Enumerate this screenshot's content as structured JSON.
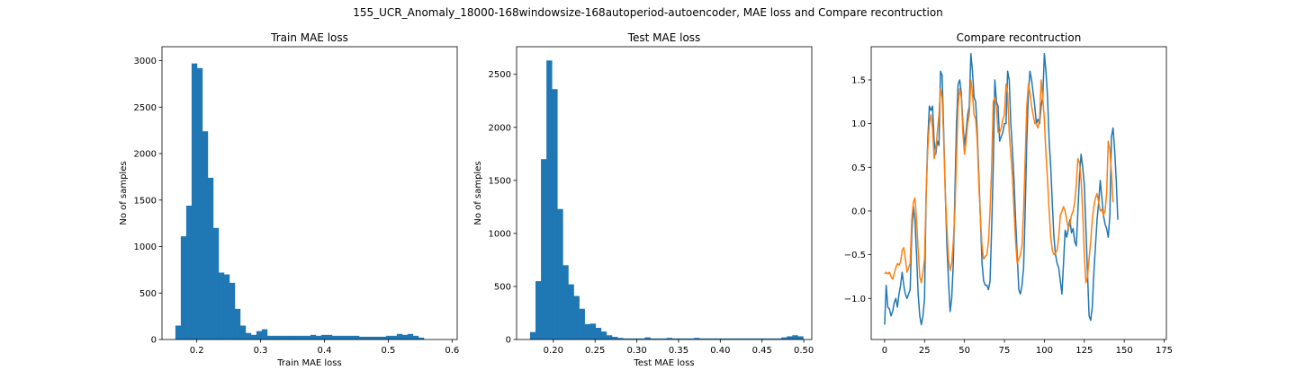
{
  "suptitle": "155_UCR_Anomaly_18000-168windowsize-168autoperiod-autoencoder, MAE loss and Compare recontruction",
  "chart_data": [
    {
      "type": "bar",
      "title": "Train MAE loss",
      "xlabel": "Train MAE loss",
      "ylabel": "No of samples",
      "color": "#1f77b4",
      "xlim": [
        0.1455,
        0.608
      ],
      "ylim": [
        0,
        3150
      ],
      "xticks": [
        0.2,
        0.3,
        0.4,
        0.5,
        0.6
      ],
      "xtick_labels": [
        "0.2",
        "0.3",
        "0.4",
        "0.5",
        "0.6"
      ],
      "yticks": [
        0,
        500,
        1000,
        1500,
        2000,
        2500,
        3000
      ],
      "ytick_labels": [
        "0",
        "500",
        "1000",
        "1500",
        "2000",
        "2500",
        "3000"
      ],
      "bin_start": 0.1665,
      "bin_width": 0.00846,
      "values": [
        150,
        1110,
        1440,
        2970,
        2920,
        2240,
        1740,
        1200,
        720,
        700,
        610,
        330,
        150,
        70,
        50,
        90,
        110,
        40,
        40,
        40,
        40,
        40,
        40,
        40,
        40,
        50,
        40,
        50,
        50,
        40,
        40,
        40,
        40,
        40,
        30,
        30,
        30,
        30,
        30,
        40,
        40,
        60,
        50,
        60,
        40,
        20
      ]
    },
    {
      "type": "bar",
      "title": "Test MAE loss",
      "xlabel": "Test MAE loss",
      "ylabel": "No of samples",
      "color": "#1f77b4",
      "xlim": [
        0.156,
        0.5096
      ],
      "ylim": [
        0,
        2760
      ],
      "xticks": [
        0.2,
        0.25,
        0.3,
        0.35,
        0.4,
        0.45,
        0.5
      ],
      "xtick_labels": [
        "0.20",
        "0.25",
        "0.30",
        "0.35",
        "0.40",
        "0.45",
        "0.50"
      ],
      "yticks": [
        0,
        500,
        1000,
        1500,
        2000,
        2500
      ],
      "ytick_labels": [
        "0",
        "500",
        "1000",
        "1500",
        "2000",
        "2500"
      ],
      "bin_start": 0.1721,
      "bin_width": 0.006544,
      "values": [
        70,
        550,
        1700,
        2630,
        2360,
        1230,
        700,
        520,
        410,
        290,
        145,
        150,
        110,
        75,
        40,
        25,
        15,
        10,
        10,
        10,
        10,
        20,
        10,
        10,
        10,
        15,
        10,
        10,
        10,
        10,
        15,
        10,
        10,
        10,
        10,
        10,
        10,
        10,
        10,
        10,
        10,
        10,
        10,
        10,
        10,
        10,
        20,
        30,
        40,
        30
      ]
    },
    {
      "type": "line",
      "title": "Compare recontruction",
      "xlim": [
        -8.4,
        176.4
      ],
      "ylim": [
        -1.47,
        1.88
      ],
      "xticks": [
        0,
        25,
        50,
        75,
        100,
        125,
        150,
        175
      ],
      "xtick_labels": [
        "0",
        "25",
        "50",
        "75",
        "100",
        "125",
        "150",
        "175"
      ],
      "yticks": [
        -1.0,
        -0.5,
        0.0,
        0.5,
        1.0,
        1.5
      ],
      "ytick_labels": [
        "−1.0",
        "−0.5",
        "0.0",
        "0.5",
        "1.0",
        "1.5"
      ],
      "series": [
        {
          "color": "#1f77b4",
          "values": [
            -1.3,
            -0.85,
            -1.1,
            -1.12,
            -1.2,
            -1.15,
            -1.05,
            -1.0,
            -1.1,
            -0.95,
            -0.85,
            -0.7,
            -0.85,
            -0.95,
            -1.0,
            -0.95,
            -0.9,
            -0.25,
            0.05,
            -0.1,
            -0.5,
            -0.95,
            -1.2,
            -1.3,
            -1.2,
            -1.0,
            0.2,
            0.8,
            1.2,
            1.15,
            1.2,
            0.8,
            0.65,
            0.8,
            0.75,
            1.6,
            1.55,
            0.9,
            0.2,
            -0.4,
            -0.8,
            -1.15,
            -1.0,
            -0.6,
            0.2,
            1.0,
            1.45,
            1.5,
            1.35,
            1.0,
            0.75,
            0.9,
            1.1,
            1.2,
            1.8,
            1.6,
            1.3,
            1.25,
            0.9,
            0.4,
            -0.1,
            -0.6,
            -0.8,
            -0.85,
            -0.85,
            -0.9,
            -0.8,
            -0.2,
            0.5,
            1.5,
            1.25,
            1.2,
            0.8,
            0.85,
            0.9,
            1.0,
            1.0,
            1.6,
            1.5,
            1.0,
            0.7,
            0.35,
            -0.1,
            -0.5,
            -0.9,
            -0.95,
            -0.85,
            -0.65,
            0.0,
            0.8,
            1.35,
            1.6,
            1.5,
            1.35,
            1.2,
            1.0,
            1.05,
            1.0,
            1.2,
            1.3,
            1.8,
            1.6,
            1.3,
            0.8,
            0.5,
            0.08,
            -0.3,
            -0.5,
            -0.6,
            -0.65,
            -0.8,
            -0.95,
            -0.6,
            -0.22,
            -0.3,
            -0.2,
            -0.1,
            -0.25,
            -0.2,
            -0.35,
            -0.4,
            0.0,
            0.4,
            0.65,
            0.5,
            0.3,
            -0.2,
            -0.7,
            -1.2,
            -1.25,
            -1.1,
            -0.7,
            -0.4,
            -0.1,
            0.1,
            0.35,
            0.15,
            -0.05,
            -0.15,
            -0.2,
            -0.3,
            -0.05,
            0.85,
            0.95,
            0.7,
            0.35,
            -0.1
          ]
        },
        {
          "color": "#ff7f0e",
          "values": [
            -0.72,
            -0.7,
            -0.72,
            -0.7,
            -0.75,
            -0.78,
            -0.72,
            -0.65,
            -0.6,
            -0.62,
            -0.58,
            -0.45,
            -0.42,
            -0.55,
            -0.7,
            -0.65,
            -0.6,
            -0.1,
            0.1,
            0.15,
            -0.1,
            -0.45,
            -0.75,
            -0.82,
            -0.7,
            -0.55,
            0.2,
            0.7,
            1.0,
            1.1,
            0.95,
            0.6,
            0.7,
            0.9,
            1.1,
            1.4,
            1.3,
            0.8,
            0.2,
            -0.2,
            -0.55,
            -0.68,
            -0.6,
            -0.35,
            0.0,
            0.6,
            1.2,
            1.4,
            1.3,
            0.9,
            0.65,
            0.8,
            1.0,
            1.1,
            1.5,
            1.35,
            1.1,
            1.05,
            0.8,
            0.3,
            -0.1,
            -0.4,
            -0.55,
            -0.52,
            -0.5,
            -0.35,
            0.0,
            0.5,
            1.25,
            1.3,
            1.2,
            0.9,
            0.9,
            0.95,
            1.05,
            1.1,
            1.45,
            1.35,
            0.9,
            0.65,
            0.4,
            0.0,
            -0.35,
            -0.6,
            -0.55,
            -0.5,
            -0.4,
            0.0,
            0.6,
            1.2,
            1.45,
            1.35,
            1.2,
            1.1,
            1.0,
            1.0,
            0.95,
            1.05,
            1.5,
            1.3,
            1.05,
            0.65,
            0.35,
            0.0,
            -0.3,
            -0.45,
            -0.5,
            -0.48,
            -0.45,
            -0.3,
            -0.05,
            0.0,
            0.05,
            0.0,
            -0.1,
            -0.2,
            -0.15,
            -0.05,
            0.0,
            0.1,
            0.3,
            0.6,
            0.55,
            0.35,
            0.0,
            -0.5,
            -0.82,
            -0.75,
            -0.55,
            -0.35,
            -0.1,
            0.05,
            0.15,
            0.2,
            0.1,
            0.0,
            0.02,
            -0.05,
            0.0,
            0.2,
            0.8,
            0.7,
            0.45,
            0.1
          ]
        }
      ]
    }
  ]
}
